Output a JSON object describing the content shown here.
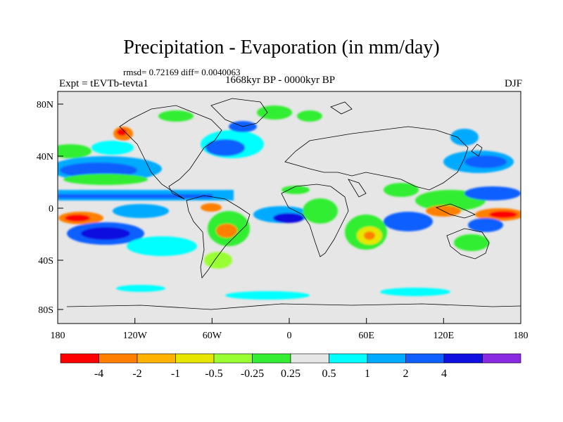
{
  "title": "Precipitation - Evaporation (in mm/day)",
  "stats": "rmsd= 0.72169 diff= 0.0040063",
  "period": "1668kyr BP - 0000kyr BP",
  "experiment": "Expt = tEVTb-tevta1",
  "season": "DJF",
  "map": {
    "background_color": "#e6e6e6",
    "lat_ticks": [
      "80N",
      "40N",
      "0",
      "40S",
      "80S"
    ],
    "lon_ticks": [
      "180",
      "120W",
      "60W",
      "0",
      "60E",
      "120E",
      "180"
    ]
  },
  "colorbar": {
    "colors": [
      "#ff0000",
      "#ff8000",
      "#ffb300",
      "#e6e600",
      "#99ff33",
      "#33ee33",
      "#e6e6e6",
      "#00ffff",
      "#00aaff",
      "#1060ff",
      "#1010e0",
      "#8a2be2"
    ],
    "labels": [
      "-4",
      "-2",
      "-1",
      "-0.5",
      "-0.25",
      "0.25",
      "0.5",
      "1",
      "2",
      "4"
    ]
  }
}
